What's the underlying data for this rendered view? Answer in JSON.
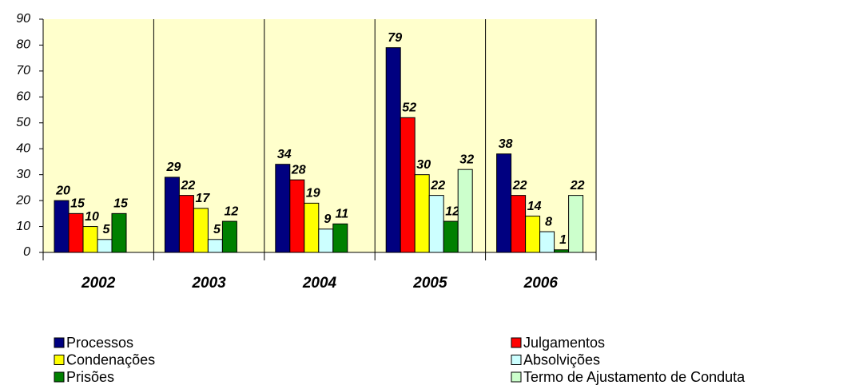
{
  "chart_data": {
    "type": "bar",
    "categories": [
      "2002",
      "2003",
      "2004",
      "2005",
      "2006"
    ],
    "series": [
      {
        "name": "Processos",
        "color": "#000080",
        "values": [
          20,
          29,
          34,
          79,
          38
        ]
      },
      {
        "name": "Julgamentos",
        "color": "#ff0000",
        "values": [
          15,
          22,
          28,
          52,
          22
        ]
      },
      {
        "name": "Condenações",
        "color": "#ffff00",
        "values": [
          10,
          17,
          19,
          30,
          14
        ]
      },
      {
        "name": "Absolvições",
        "color": "#ccffff",
        "values": [
          5,
          5,
          9,
          22,
          8
        ]
      },
      {
        "name": "Prisões",
        "color": "#008000",
        "values": [
          15,
          12,
          11,
          12,
          1
        ]
      },
      {
        "name": "Termo de Ajustamento de Conduta",
        "color": "#ccffcc",
        "values": [
          null,
          null,
          null,
          32,
          22
        ]
      }
    ],
    "ylim": [
      0,
      90
    ],
    "yticks": [
      0,
      10,
      20,
      30,
      40,
      50,
      60,
      70,
      80,
      90
    ],
    "plot_background": "#ffffcc"
  }
}
